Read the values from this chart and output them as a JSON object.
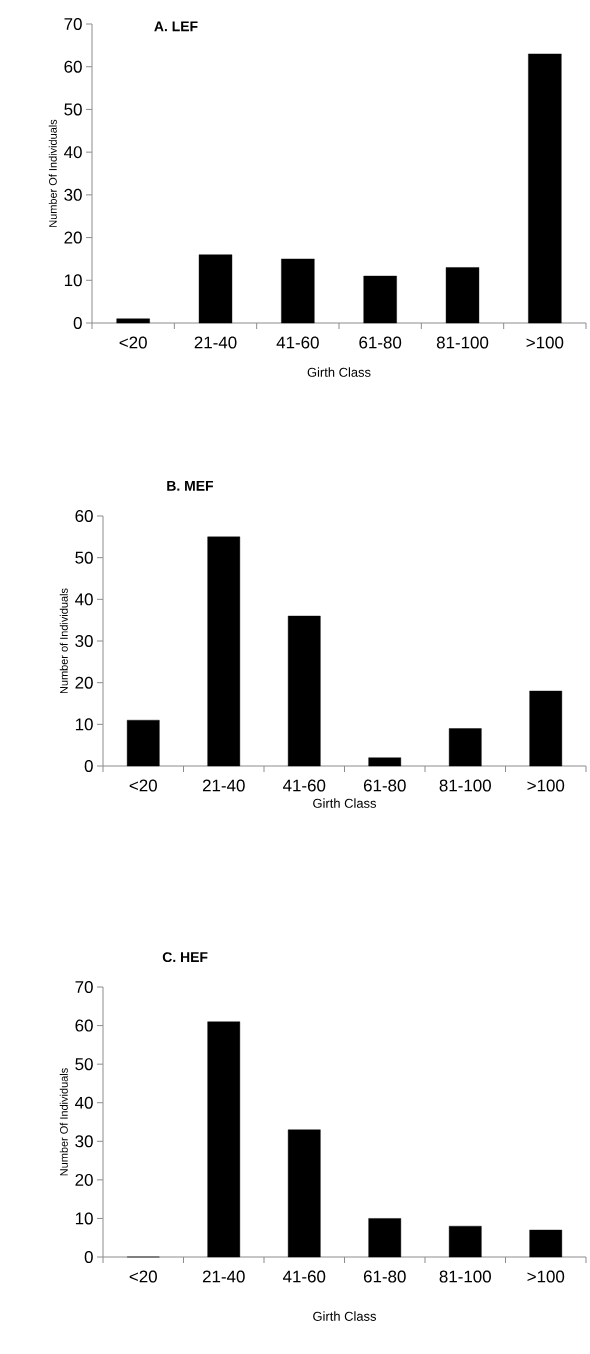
{
  "chart_data": [
    {
      "type": "bar",
      "title": "A. LEF",
      "xlabel": "Girth Class",
      "ylabel": "Number Of Individuals",
      "categories": [
        "<20",
        "21-40",
        "41-60",
        "61-80",
        "81-100",
        ">100"
      ],
      "values": [
        1,
        16,
        15,
        11,
        13,
        63
      ],
      "color": "#000000",
      "ylim": [
        0,
        70
      ],
      "yticks": [
        0,
        10,
        20,
        30,
        40,
        50,
        60,
        70
      ]
    },
    {
      "type": "bar",
      "title": "B. MEF",
      "xlabel": "Girth Class",
      "ylabel": "Number of Individuals",
      "categories": [
        "<20",
        "21-40",
        "41-60",
        "61-80",
        "81-100",
        ">100"
      ],
      "values": [
        11,
        55,
        36,
        2,
        9,
        18
      ],
      "color": "#000000",
      "ylim": [
        0,
        60
      ],
      "yticks": [
        0,
        10,
        20,
        30,
        40,
        50,
        60
      ]
    },
    {
      "type": "bar",
      "title": "C. HEF",
      "xlabel": "Girth Class",
      "ylabel": "Number Of Individuals",
      "categories": [
        "<20",
        "21-40",
        "41-60",
        "61-80",
        "81-100",
        ">100"
      ],
      "values": [
        0,
        61,
        33,
        10,
        8,
        7
      ],
      "color": "#000000",
      "ylim": [
        0,
        70
      ],
      "yticks": [
        0,
        10,
        20,
        30,
        40,
        50,
        60,
        70
      ]
    }
  ]
}
